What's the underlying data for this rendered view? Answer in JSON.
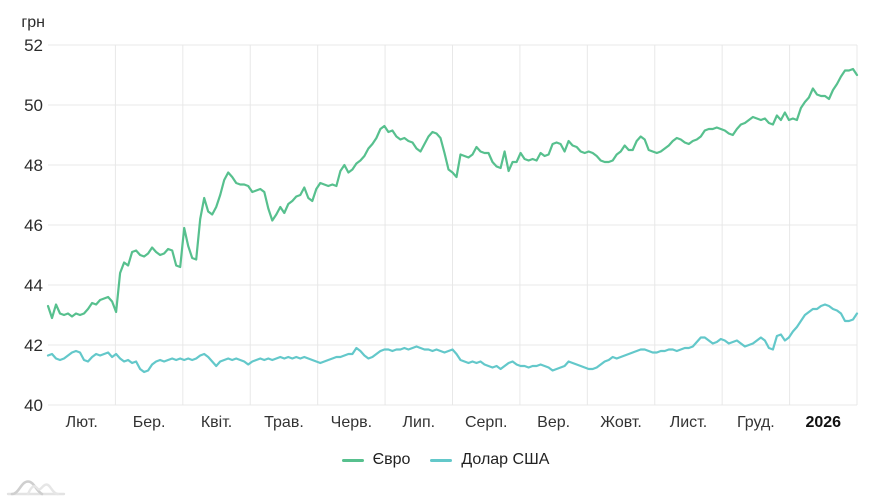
{
  "chart_data": {
    "type": "line",
    "title": "",
    "y_axis": {
      "unit": "грн",
      "min": 40,
      "max": 52,
      "tick_step": 2,
      "ticks": [
        52,
        50,
        48,
        46,
        44,
        42,
        40
      ]
    },
    "x_axis": {
      "labels": [
        "Лют.",
        "Бер.",
        "Квіт.",
        "Трав.",
        "Черв.",
        "Лип.",
        "Серп.",
        "Вер.",
        "Жовт.",
        "Лист.",
        "Груд.",
        "2026"
      ],
      "bold_last": true
    },
    "grid": true,
    "legend_position": "bottom",
    "ylim": [
      40,
      52
    ],
    "series": [
      {
        "name": "Євро",
        "color": "#57c08e",
        "values": [
          43.3,
          42.9,
          43.35,
          43.05,
          43.0,
          43.05,
          42.95,
          43.05,
          43.0,
          43.05,
          43.2,
          43.4,
          43.35,
          43.5,
          43.55,
          43.6,
          43.45,
          43.1,
          44.4,
          44.75,
          44.65,
          45.1,
          45.15,
          45.0,
          44.95,
          45.05,
          45.25,
          45.1,
          45.0,
          45.05,
          45.2,
          45.15,
          44.65,
          44.6,
          45.9,
          45.3,
          44.9,
          44.85,
          46.2,
          46.9,
          46.45,
          46.35,
          46.6,
          47.0,
          47.5,
          47.75,
          47.6,
          47.4,
          47.35,
          47.35,
          47.3,
          47.1,
          47.15,
          47.2,
          47.1,
          46.55,
          46.15,
          46.35,
          46.6,
          46.4,
          46.7,
          46.8,
          46.95,
          47.0,
          47.25,
          46.9,
          46.8,
          47.2,
          47.4,
          47.35,
          47.3,
          47.35,
          47.3,
          47.8,
          48.0,
          47.75,
          47.85,
          48.05,
          48.15,
          48.3,
          48.55,
          48.7,
          48.9,
          49.2,
          49.3,
          49.1,
          49.15,
          48.95,
          48.85,
          48.9,
          48.8,
          48.75,
          48.55,
          48.45,
          48.7,
          48.95,
          49.1,
          49.05,
          48.9,
          48.4,
          47.85,
          47.75,
          47.6,
          48.35,
          48.3,
          48.25,
          48.35,
          48.6,
          48.45,
          48.4,
          48.4,
          48.1,
          47.95,
          47.9,
          48.45,
          47.8,
          48.1,
          48.1,
          48.4,
          48.2,
          48.15,
          48.2,
          48.15,
          48.4,
          48.3,
          48.35,
          48.7,
          48.75,
          48.7,
          48.45,
          48.8,
          48.65,
          48.6,
          48.45,
          48.4,
          48.45,
          48.4,
          48.3,
          48.15,
          48.1,
          48.1,
          48.15,
          48.35,
          48.45,
          48.65,
          48.5,
          48.5,
          48.8,
          48.95,
          48.85,
          48.5,
          48.45,
          48.4,
          48.45,
          48.55,
          48.65,
          48.8,
          48.9,
          48.85,
          48.75,
          48.7,
          48.8,
          48.85,
          48.95,
          49.15,
          49.2,
          49.2,
          49.25,
          49.2,
          49.15,
          49.05,
          49.0,
          49.2,
          49.35,
          49.4,
          49.5,
          49.6,
          49.55,
          49.5,
          49.55,
          49.4,
          49.35,
          49.65,
          49.5,
          49.75,
          49.5,
          49.55,
          49.5,
          49.9,
          50.1,
          50.25,
          50.55,
          50.35,
          50.3,
          50.3,
          50.2,
          50.5,
          50.7,
          50.95,
          51.15,
          51.15,
          51.2,
          51.0
        ]
      },
      {
        "name": "Долар США",
        "color": "#63c8ca",
        "values": [
          41.65,
          41.7,
          41.55,
          41.5,
          41.55,
          41.65,
          41.75,
          41.8,
          41.75,
          41.5,
          41.45,
          41.6,
          41.7,
          41.65,
          41.7,
          41.75,
          41.6,
          41.7,
          41.55,
          41.45,
          41.5,
          41.4,
          41.45,
          41.2,
          41.1,
          41.15,
          41.35,
          41.45,
          41.5,
          41.45,
          41.5,
          41.55,
          41.5,
          41.55,
          41.5,
          41.55,
          41.5,
          41.55,
          41.65,
          41.7,
          41.6,
          41.45,
          41.3,
          41.45,
          41.5,
          41.55,
          41.5,
          41.55,
          41.5,
          41.45,
          41.35,
          41.45,
          41.5,
          41.55,
          41.5,
          41.55,
          41.5,
          41.55,
          41.6,
          41.55,
          41.6,
          41.55,
          41.6,
          41.55,
          41.6,
          41.55,
          41.5,
          41.45,
          41.4,
          41.45,
          41.5,
          41.55,
          41.6,
          41.6,
          41.65,
          41.7,
          41.7,
          41.9,
          41.8,
          41.65,
          41.55,
          41.6,
          41.7,
          41.8,
          41.85,
          41.85,
          41.8,
          41.85,
          41.85,
          41.9,
          41.85,
          41.9,
          41.95,
          41.9,
          41.85,
          41.85,
          41.8,
          41.85,
          41.8,
          41.75,
          41.8,
          41.85,
          41.7,
          41.5,
          41.45,
          41.4,
          41.45,
          41.4,
          41.45,
          41.35,
          41.3,
          41.25,
          41.3,
          41.2,
          41.3,
          41.4,
          41.45,
          41.35,
          41.3,
          41.3,
          41.25,
          41.3,
          41.3,
          41.35,
          41.3,
          41.25,
          41.15,
          41.2,
          41.25,
          41.3,
          41.45,
          41.4,
          41.35,
          41.3,
          41.25,
          41.2,
          41.2,
          41.25,
          41.35,
          41.45,
          41.5,
          41.6,
          41.55,
          41.6,
          41.65,
          41.7,
          41.75,
          41.8,
          41.85,
          41.85,
          41.8,
          41.75,
          41.75,
          41.8,
          41.8,
          41.85,
          41.85,
          41.8,
          41.85,
          41.9,
          41.9,
          41.95,
          42.1,
          42.25,
          42.25,
          42.15,
          42.05,
          42.1,
          42.2,
          42.15,
          42.05,
          42.1,
          42.15,
          42.05,
          41.95,
          42.0,
          42.05,
          42.15,
          42.25,
          42.15,
          41.9,
          41.85,
          42.3,
          42.35,
          42.15,
          42.25,
          42.45,
          42.6,
          42.8,
          43.0,
          43.1,
          43.2,
          43.2,
          43.3,
          43.35,
          43.3,
          43.2,
          43.15,
          43.05,
          42.8,
          42.8,
          42.85,
          43.05
        ]
      }
    ]
  },
  "legend": {
    "items": [
      {
        "label": "Євро"
      },
      {
        "label": "Долар США"
      }
    ]
  },
  "logo_name": "wave-chart-logo"
}
